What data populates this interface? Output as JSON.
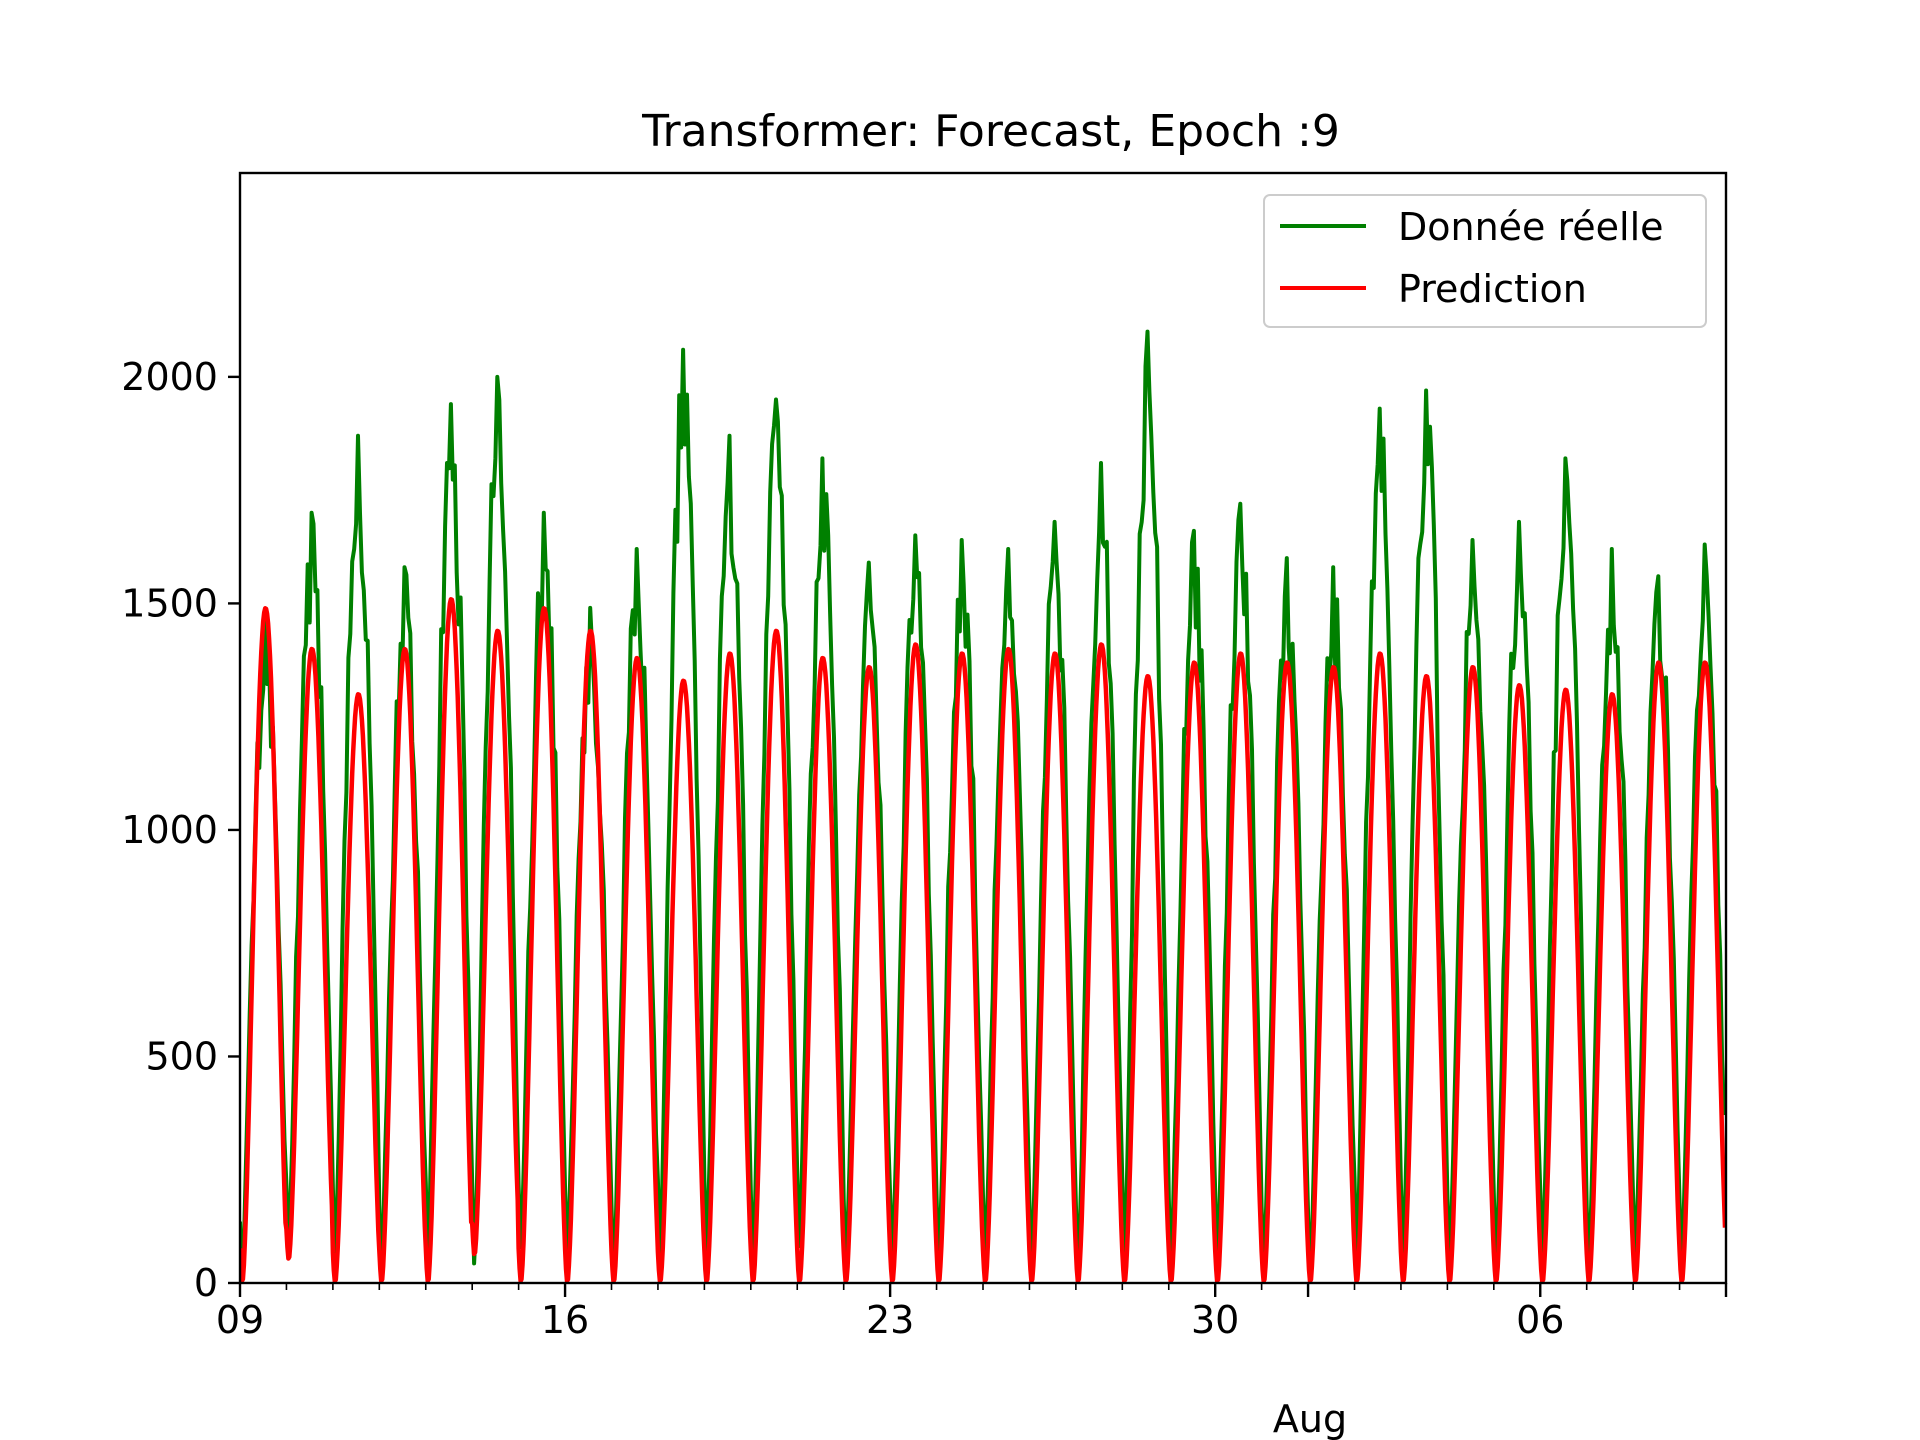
{
  "chart_data": {
    "type": "line",
    "title": "Transformer: Forecast, Epoch :9",
    "xlabel": "",
    "ylabel": "",
    "x_start": "2019-07-09",
    "x_end": "2019-08-10",
    "ylim": [
      0,
      2450
    ],
    "y_ticks": [
      0,
      500,
      1000,
      1500,
      2000
    ],
    "x_tick_labels": [
      "09",
      "16",
      "23",
      "30",
      "06"
    ],
    "x_tick_days": [
      0,
      7,
      14,
      21,
      28
    ],
    "x_month_label": "Aug",
    "grid": false,
    "legend_position": "upper right",
    "days": 32,
    "series": [
      {
        "name": "Donnée réelle",
        "color": "#008000",
        "daily_peaks": [
          1460,
          1700,
          1870,
          1580,
          1940,
          2000,
          1700,
          1490,
          1620,
          2060,
          1870,
          1950,
          1820,
          1590,
          1650,
          1640,
          1620,
          1680,
          1810,
          2100,
          1660,
          1720,
          1600,
          1580,
          1930,
          1970,
          1640,
          1680,
          1820,
          1620,
          1560,
          1630
        ],
        "daily_troughs": [
          0,
          60,
          30,
          20,
          40,
          20,
          60,
          50,
          0,
          40,
          40,
          20,
          60,
          20,
          30,
          20,
          40,
          20,
          0,
          20,
          20,
          30,
          20,
          0,
          30,
          20,
          30,
          20,
          30,
          20,
          40,
          20
        ]
      },
      {
        "name": "Prediction",
        "color": "#ff0000",
        "daily_peaks": [
          1490,
          1400,
          1300,
          1400,
          1510,
          1440,
          1490,
          1440,
          1380,
          1330,
          1390,
          1440,
          1380,
          1360,
          1410,
          1390,
          1400,
          1390,
          1410,
          1340,
          1370,
          1390,
          1370,
          1360,
          1390,
          1340,
          1360,
          1320,
          1310,
          1300,
          1370,
          1370
        ],
        "daily_troughs": [
          0,
          50,
          0,
          0,
          0,
          60,
          0,
          0,
          0,
          0,
          0,
          0,
          0,
          0,
          0,
          0,
          0,
          0,
          0,
          0,
          0,
          0,
          0,
          0,
          0,
          0,
          0,
          0,
          0,
          0,
          0,
          0
        ]
      }
    ]
  }
}
